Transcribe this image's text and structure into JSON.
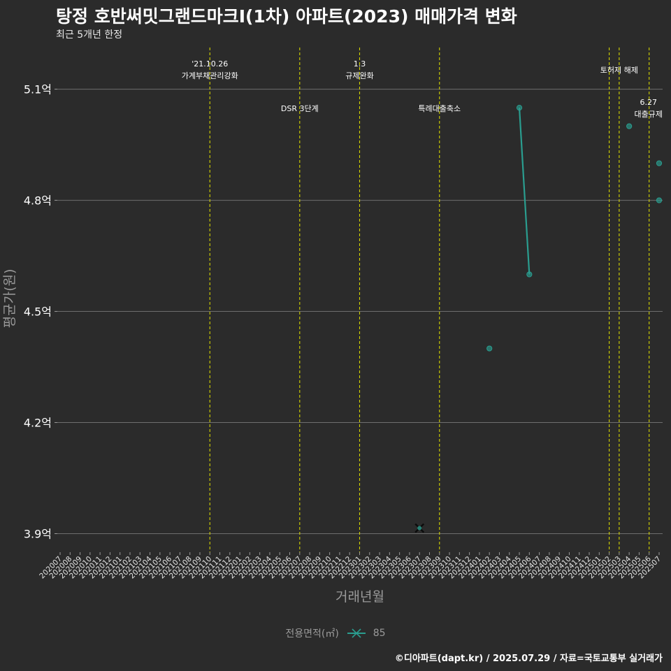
{
  "page": {
    "title": "탕정 호반써밋그랜드마크Ⅰ(1차) 아파트(2023) 매매가격 변화",
    "subtitle": "최근 5개년 한정",
    "footer": "©디아파트(dapt.kr) / 2025.07.29 / 자료=국토교통부 실거래가"
  },
  "legend": {
    "title": "전용면적(㎡)",
    "items": [
      {
        "label": "85",
        "color": "#2a9d8f"
      }
    ]
  },
  "chart_data": {
    "type": "line",
    "title": "탕정 호반써밋그랜드마크Ⅰ(1차) 아파트(2023) 매매가격 변화",
    "subtitle": "최근 5개년 한정",
    "xlabel": "거래년월",
    "ylabel": "평균가(원)",
    "categories": [
      "202007",
      "202008",
      "202009",
      "202010",
      "202011",
      "202012",
      "202101",
      "202102",
      "202103",
      "202104",
      "202105",
      "202106",
      "202107",
      "202108",
      "202109",
      "202110",
      "202111",
      "202112",
      "202201",
      "202202",
      "202203",
      "202204",
      "202205",
      "202206",
      "202207",
      "202208",
      "202209",
      "202210",
      "202211",
      "202212",
      "202301",
      "202302",
      "202303",
      "202304",
      "202305",
      "202306",
      "202307",
      "202308",
      "202309",
      "202310",
      "202311",
      "202312",
      "202401",
      "202402",
      "202403",
      "202404",
      "202405",
      "202406",
      "202407",
      "202408",
      "202409",
      "202410",
      "202411",
      "202412",
      "202501",
      "202502",
      "202503",
      "202504",
      "202505",
      "202506",
      "202507"
    ],
    "ylim": [
      3.85,
      5.22
    ],
    "yticks": [
      3.9,
      4.2,
      4.5,
      4.8,
      5.1
    ],
    "ytick_labels": [
      "3.9억",
      "4.2억",
      "4.5억",
      "4.8억",
      "5.1억"
    ],
    "series": [
      {
        "name": "85",
        "color": "#2a9d8f",
        "points": [
          {
            "x": "202402",
            "y": 4.4
          },
          {
            "x": "202405",
            "y": 5.05
          },
          {
            "x": "202406",
            "y": 4.6
          },
          {
            "x": "202504",
            "y": 5.0
          },
          {
            "x": "202507",
            "y": 4.9
          },
          {
            "x": "202507",
            "y": 4.8
          }
        ],
        "lines": [
          [
            "202405",
            "202406"
          ]
        ]
      }
    ],
    "cancelled": [
      {
        "x": "202307",
        "y": 3.915
      }
    ],
    "annotations": [
      {
        "x": "202110",
        "lines": [
          "'21.10.26",
          "가계부채관리강화"
        ],
        "row": "top"
      },
      {
        "x": "202207",
        "lines": [
          "DSR 3단계"
        ],
        "row": "mid"
      },
      {
        "x": "202301",
        "lines": [
          "1.3",
          "규제완화"
        ],
        "row": "top"
      },
      {
        "x": "202309",
        "lines": [
          "특례대출축소"
        ],
        "row": "mid"
      },
      {
        "x": "202502",
        "lines": [
          "토허제 해제"
        ],
        "row": "top2",
        "shift": 1
      },
      {
        "x": "202503",
        "lines": [],
        "row": "none"
      },
      {
        "x": "202506",
        "lines": [
          "6.27",
          "대출규제"
        ],
        "row": "low"
      }
    ],
    "grid": true,
    "legend_position": "bottom"
  }
}
